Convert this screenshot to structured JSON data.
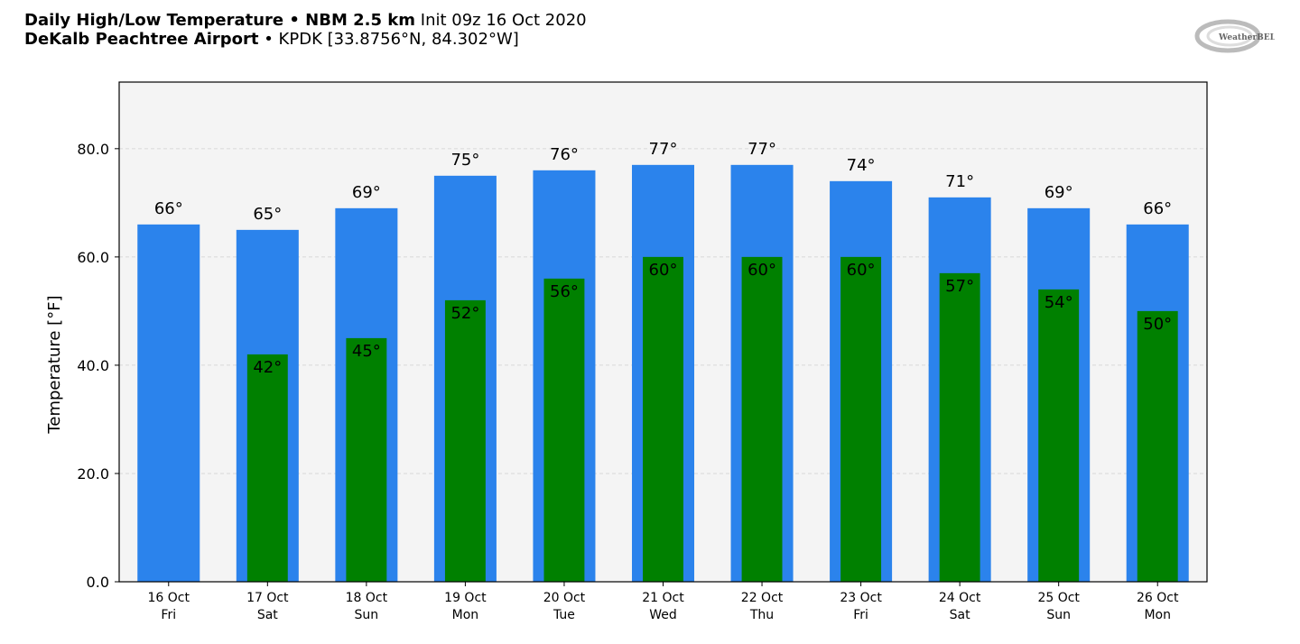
{
  "header": {
    "title_bold": "Daily High/Low Temperature • NBM 2.5 km",
    "title_rest": "Init 09z 16 Oct 2020",
    "location_bold": "DeKalb Peachtree Airport",
    "location_rest": "• KPDK [33.8756°N, 84.302°W]",
    "logo_text": "WeatherBELL"
  },
  "chart_data": {
    "type": "bar",
    "title": "Daily High/Low Temperature • NBM 2.5 km",
    "xlabel": "",
    "ylabel": "Temperature [°F]",
    "ylim": [
      0,
      92.3
    ],
    "yticks": [
      0,
      20,
      40,
      60,
      80
    ],
    "ytick_labels": [
      "0.0",
      "20.0",
      "40.0",
      "60.0",
      "80.0"
    ],
    "grid": true,
    "categories": [
      "16 Oct",
      "17 Oct",
      "18 Oct",
      "19 Oct",
      "20 Oct",
      "21 Oct",
      "22 Oct",
      "23 Oct",
      "24 Oct",
      "25 Oct",
      "26 Oct"
    ],
    "weekdays": [
      "Fri",
      "Sat",
      "Sun",
      "Mon",
      "Tue",
      "Wed",
      "Thu",
      "Fri",
      "Sat",
      "Sun",
      "Mon"
    ],
    "series": [
      {
        "name": "High",
        "color": "#2b83ec",
        "values": [
          66,
          65,
          69,
          75,
          76,
          77,
          77,
          74,
          71,
          69,
          66
        ]
      },
      {
        "name": "Low",
        "color": "#008000",
        "values": [
          null,
          42,
          45,
          52,
          56,
          60,
          60,
          60,
          57,
          54,
          50
        ]
      }
    ],
    "label_suffix": "°"
  }
}
